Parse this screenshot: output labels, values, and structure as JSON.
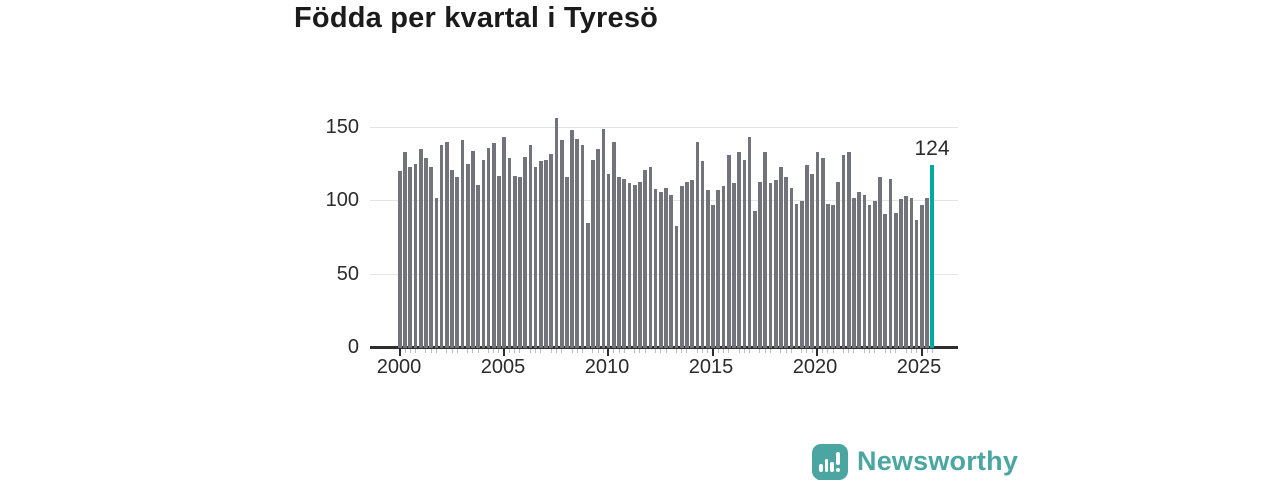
{
  "title": "Födda per kvartal i Tyresö",
  "annotation": {
    "label": "124"
  },
  "logo": {
    "text": "Newsworthy",
    "color": "#4ba6a1",
    "icon": "newsworthy-chart-bubble-icon"
  },
  "chart_data": {
    "type": "bar",
    "title": "Födda per kvartal i Tyresö",
    "xlabel": "",
    "ylabel": "",
    "start_period": "2000 Q1",
    "end_period": "2025 Q3",
    "period_step": "quarter",
    "x_tick_labels": [
      "2000",
      "2005",
      "2010",
      "2015",
      "2020",
      "2025"
    ],
    "y_ticks": [
      0,
      50,
      100,
      150
    ],
    "y_tick_labels": [
      "0",
      "50",
      "100",
      "150"
    ],
    "ylim": [
      0,
      160
    ],
    "grid": "horizontal",
    "bar_color": "#73737b",
    "highlight": {
      "index": 102,
      "period": "2025 Q3",
      "value": 124,
      "color": "#00a89d",
      "label": "124"
    },
    "values": [
      120,
      133,
      123,
      125,
      135,
      129,
      123,
      102,
      138,
      140,
      121,
      116,
      141,
      125,
      134,
      111,
      128,
      136,
      139,
      117,
      143,
      129,
      117,
      116,
      130,
      138,
      123,
      127,
      128,
      132,
      156,
      141,
      116,
      148,
      142,
      138,
      85,
      128,
      135,
      149,
      118,
      140,
      116,
      115,
      112,
      111,
      113,
      121,
      123,
      108,
      106,
      109,
      104,
      83,
      110,
      113,
      114,
      140,
      127,
      107,
      97,
      107,
      110,
      131,
      112,
      133,
      128,
      143,
      93,
      113,
      133,
      112,
      114,
      123,
      116,
      109,
      98,
      100,
      124,
      118,
      133,
      129,
      98,
      97,
      113,
      131,
      133,
      102,
      106,
      104,
      97,
      100,
      116,
      91,
      115,
      92,
      101,
      103,
      102,
      87,
      97,
      102,
      124
    ]
  }
}
